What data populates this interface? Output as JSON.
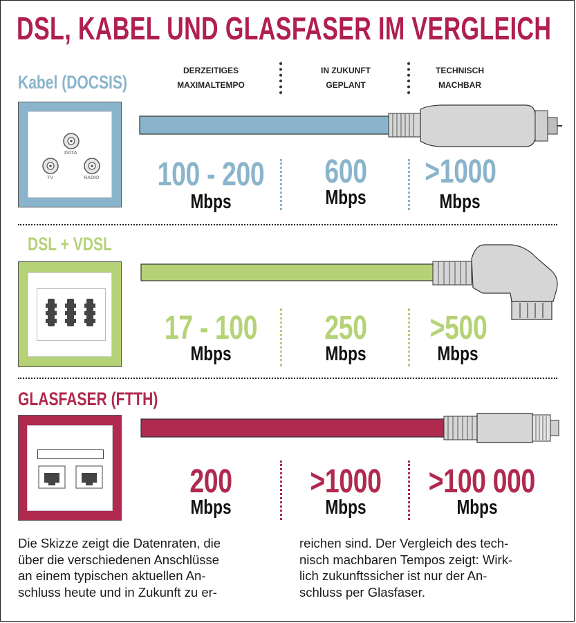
{
  "title": "DSL, KABEL UND GLASFASER IM VERGLEICH",
  "columns": [
    {
      "line1": "DERZEITIGES",
      "line2": "MAXIMALTEMPO"
    },
    {
      "line1": "IN ZUKUNFT",
      "line2": "GEPLANT"
    },
    {
      "line1": "TECHNISCH",
      "line2": "MACHBAR"
    }
  ],
  "sections": [
    {
      "name": "Kabel (DOCSIS)",
      "color": "#8ab4cb",
      "socket_labels": {
        "data": "DATA",
        "tv": "TV",
        "radio": "RADIO"
      },
      "current": "100 - 200",
      "planned": "600",
      "possible": ">1000",
      "unit": "Mbps"
    },
    {
      "name": "DSL + VDSL",
      "color": "#b5d276",
      "current": "17 - 100",
      "planned": "250",
      "possible": ">500",
      "unit": "Mbps"
    },
    {
      "name": "GLASFASER (FTTH)",
      "color": "#b0294f",
      "current": "200",
      "planned": ">1000",
      "possible": ">100 000",
      "unit": "Mbps"
    }
  ],
  "description": {
    "left_lines": [
      "Die Skizze zeigt die Datenraten, die",
      "über die verschiedenen Anschlüsse",
      "an einem typischen aktuellen An-",
      "schluss heute und in Zukunft zu er-"
    ],
    "right_lines": [
      "reichen sind. Der Vergleich des tech-",
      "nisch machbaren Tempos zeigt: Wirk-",
      "lich zukunftssicher ist nur der An-",
      "schluss per Glasfaser."
    ]
  }
}
